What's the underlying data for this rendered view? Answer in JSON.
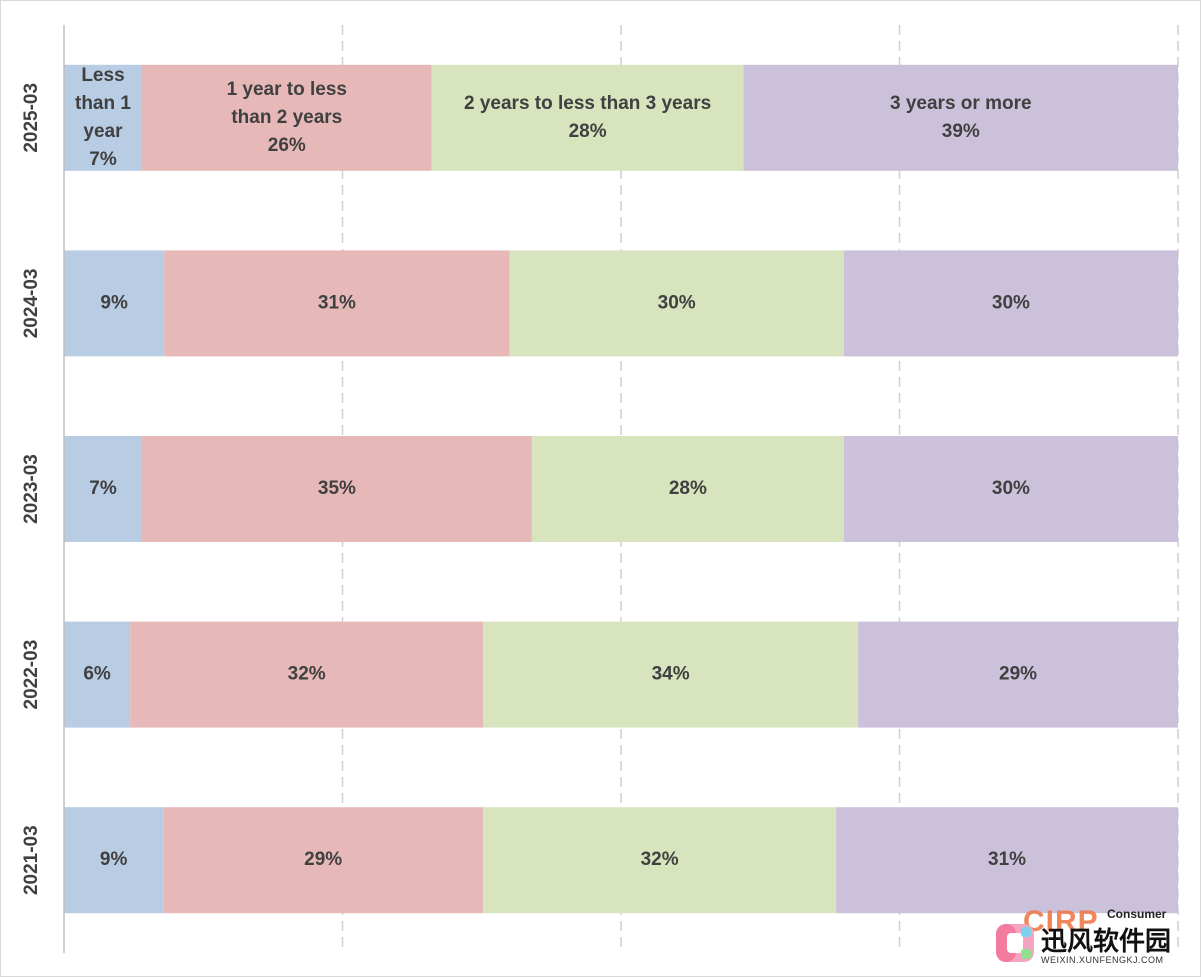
{
  "chart_data": {
    "type": "bar",
    "orientation": "horizontal",
    "stacked": "percent",
    "title": "",
    "xlabel": "",
    "ylabel": "",
    "xlim": [
      0,
      100
    ],
    "grid": true,
    "legend": "none",
    "categories": [
      "2025-03",
      "2024-03",
      "2023-03",
      "2022-03",
      "2021-03"
    ],
    "series": [
      {
        "name": "Less than 1 year",
        "label_lines": [
          "Less",
          "than 1",
          "year"
        ],
        "color": "#b8cce4",
        "values": [
          7,
          9,
          7,
          6,
          9
        ]
      },
      {
        "name": "1 year to less than 2 years",
        "label_lines": [
          "1 year to less",
          "than 2 years"
        ],
        "color": "#e6b9b8",
        "values": [
          26,
          31,
          35,
          32,
          29
        ]
      },
      {
        "name": "2 years to less than 3 years",
        "label_lines": [
          "2 years to less than 3 years"
        ],
        "color": "#d7e4bd",
        "values": [
          28,
          30,
          28,
          34,
          32
        ]
      },
      {
        "name": "3 years or more",
        "label_lines": [
          "3 years or more"
        ],
        "color": "#ccc1da",
        "values": [
          39,
          30,
          30,
          29,
          31
        ]
      }
    ],
    "series_name_shown_in_category": "2025-03"
  },
  "watermark": {
    "brand_en": "CIRP",
    "brand_sub": "Consumer",
    "brand_cn": "迅风软件园",
    "url": "WEIXIN.XUNFENGKJ.COM"
  }
}
